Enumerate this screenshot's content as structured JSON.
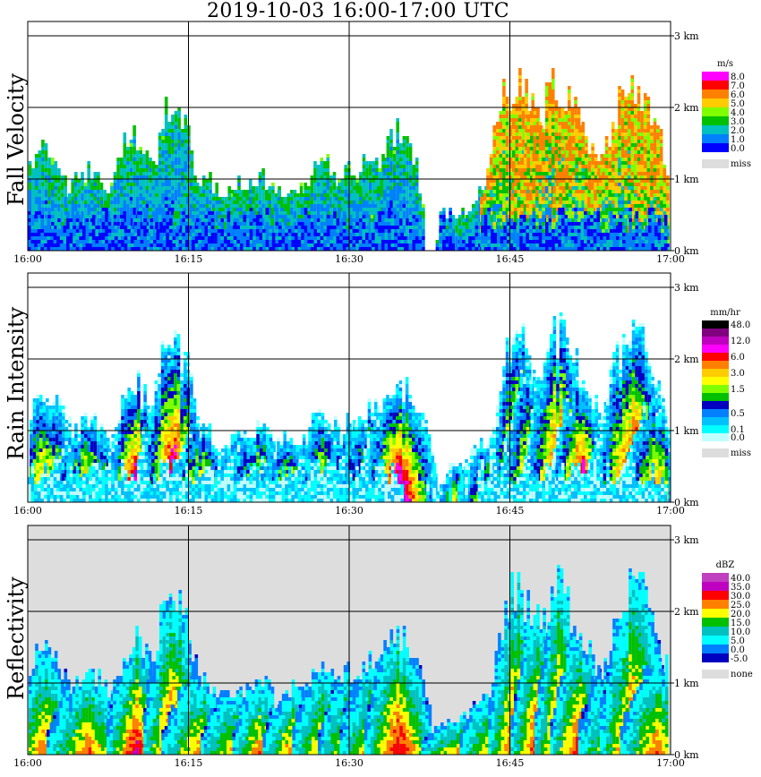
{
  "title": "2019-10-03   16:00-17:00 UTC",
  "time_ticks": [
    "16:00",
    "16:15",
    "16:30",
    "16:45",
    "17:00"
  ],
  "height_ticks": [
    "0 km",
    "1 km",
    "2 km",
    "3 km"
  ],
  "panels": [
    {
      "ylabel": "Fall Velocity",
      "units": "m/s",
      "colorbar": [
        {
          "label": "8.0",
          "color": "#ff00ff"
        },
        {
          "label": "7.0",
          "color": "#ff0000"
        },
        {
          "label": "6.0",
          "color": "#ff8000"
        },
        {
          "label": "5.0",
          "color": "#ffcc00"
        },
        {
          "label": "4.0",
          "color": "#80ff00"
        },
        {
          "label": "3.0",
          "color": "#00c000"
        },
        {
          "label": "2.0",
          "color": "#00c0c0"
        },
        {
          "label": "1.0",
          "color": "#0080ff"
        },
        {
          "label": "0.0",
          "color": "#0000ff"
        }
      ],
      "missing_label": "miss",
      "background": "#ffffff"
    },
    {
      "ylabel": "Rain Intensity",
      "units": "mm/hr",
      "colorbar": [
        {
          "label": "48.0",
          "color": "#000000"
        },
        {
          "label": "",
          "color": "#800080"
        },
        {
          "label": "12.0",
          "color": "#c000c0"
        },
        {
          "label": "",
          "color": "#ff00ff"
        },
        {
          "label": "6.0",
          "color": "#ff0000"
        },
        {
          "label": "",
          "color": "#ff8000"
        },
        {
          "label": "3.0",
          "color": "#ffcc00"
        },
        {
          "label": "",
          "color": "#ffff00"
        },
        {
          "label": "1.5",
          "color": "#80ff00"
        },
        {
          "label": "",
          "color": "#00c000"
        },
        {
          "label": "",
          "color": "#0000c0"
        },
        {
          "label": "0.5",
          "color": "#0080ff"
        },
        {
          "label": "",
          "color": "#00c0ff"
        },
        {
          "label": "0.1",
          "color": "#00ffff"
        },
        {
          "label": "0.0",
          "color": "#c0ffff"
        }
      ],
      "missing_label": "miss",
      "background": "#ffffff"
    },
    {
      "ylabel": "Reflectivity",
      "units": "dBZ",
      "colorbar": [
        {
          "label": "40.0",
          "color": "#c040c0"
        },
        {
          "label": "35.0",
          "color": "#c000c0"
        },
        {
          "label": "30.0",
          "color": "#ff0000"
        },
        {
          "label": "25.0",
          "color": "#ff8000"
        },
        {
          "label": "20.0",
          "color": "#ffff00"
        },
        {
          "label": "15.0",
          "color": "#00c000"
        },
        {
          "label": "10.0",
          "color": "#00c0c0"
        },
        {
          "label": "5.0",
          "color": "#00ffff"
        },
        {
          "label": "0.0",
          "color": "#0080ff"
        },
        {
          "label": "-5.0",
          "color": "#0000c0"
        }
      ],
      "missing_label": "none",
      "background": "#dddddd"
    }
  ],
  "chart_data": {
    "type": "heatmap",
    "x_label_range": [
      "16:00",
      "17:00"
    ],
    "y_range_km": [
      0,
      3.2
    ],
    "x_ticks": [
      "16:00",
      "16:15",
      "16:30",
      "16:45",
      "17:00"
    ],
    "y_ticks": [
      0,
      1,
      2,
      3
    ],
    "grid": true,
    "rain_cells": [
      {
        "t": 1.5,
        "top_km": 1.4
      },
      {
        "t": 5.5,
        "top_km": 1.1
      },
      {
        "t": 10.0,
        "top_km": 1.6
      },
      {
        "t": 13.5,
        "top_km": 2.1
      },
      {
        "t": 16.0,
        "top_km": 1.0
      },
      {
        "t": 19.5,
        "top_km": 0.9
      },
      {
        "t": 21.5,
        "top_km": 1.0
      },
      {
        "t": 24.5,
        "top_km": 0.9
      },
      {
        "t": 27.5,
        "top_km": 1.2
      },
      {
        "t": 30.0,
        "top_km": 1.1
      },
      {
        "t": 32.0,
        "top_km": 1.3
      },
      {
        "t": 34.5,
        "top_km": 1.6
      },
      {
        "t": 40.5,
        "top_km": 0.5
      },
      {
        "t": 43.5,
        "top_km": 0.9
      },
      {
        "t": 45.5,
        "top_km": 2.3
      },
      {
        "t": 47.5,
        "top_km": 1.9
      },
      {
        "t": 49.5,
        "top_km": 2.3
      },
      {
        "t": 51.5,
        "top_km": 1.6
      },
      {
        "t": 55.0,
        "top_km": 1.4
      },
      {
        "t": 56.5,
        "top_km": 2.3
      },
      {
        "t": 58.5,
        "top_km": 1.3
      }
    ]
  }
}
